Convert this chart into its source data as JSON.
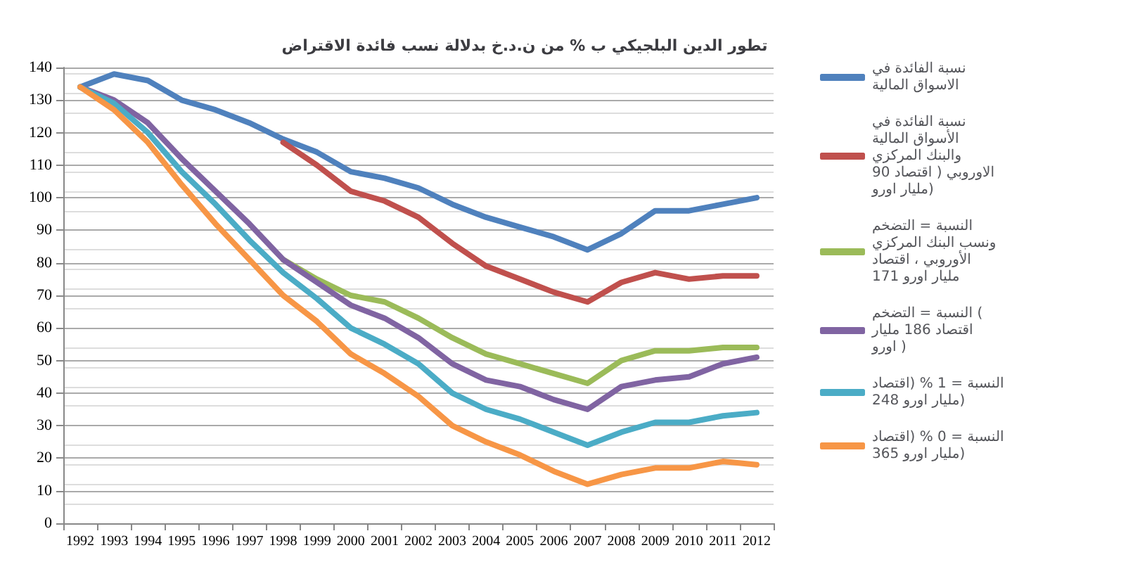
{
  "chart_data": {
    "type": "line",
    "title": "تطور الدين البلجيكي ب % من ن.د.خ بدلالة نسب فائدة الاقتراض",
    "categories": [
      "1992",
      "1993",
      "1994",
      "1995",
      "1996",
      "1997",
      "1998",
      "1999",
      "2000",
      "2001",
      "2002",
      "2003",
      "2004",
      "2005",
      "2006",
      "2007",
      "2008",
      "2009",
      "2010",
      "2011",
      "2012"
    ],
    "series": [
      {
        "name": "نسبة الفائدة في الاسواق المالية",
        "color": "#4f81bd",
        "values": [
          134,
          138,
          136,
          130,
          127,
          123,
          118,
          114,
          108,
          106,
          103,
          98,
          94,
          91,
          88,
          84,
          89,
          96,
          96,
          98,
          100
        ]
      },
      {
        "name": "نسبة الفائدة في الأسواق المالية والبنك المركزي الاوروبي ( اقتصاد 90 مليار اورو)",
        "color": "#c0504d",
        "values": [
          null,
          null,
          null,
          null,
          null,
          null,
          117,
          110,
          102,
          99,
          94,
          86,
          79,
          75,
          71,
          68,
          74,
          77,
          75,
          76,
          76
        ]
      },
      {
        "name": "النسبة = التضخم ونسب البنك المركزي الأوروبي ، اقتصاد 171 مليار اورو",
        "color": "#9bbb59",
        "values": [
          null,
          null,
          null,
          null,
          null,
          null,
          81,
          75,
          70,
          68,
          63,
          57,
          52,
          49,
          46,
          43,
          50,
          53,
          53,
          54,
          54
        ]
      },
      {
        "name": "النسبة = التضخم ( اقتصاد 186 مليار اورو )",
        "color": "#8064a2",
        "values": [
          134,
          130,
          123,
          112,
          102,
          92,
          81,
          74,
          67,
          63,
          57,
          49,
          44,
          42,
          38,
          35,
          42,
          44,
          45,
          49,
          51
        ]
      },
      {
        "name": "النسبة = 1 % (اقتصاد 248 مليار اورو)",
        "color": "#4bacc6",
        "values": [
          134,
          129,
          120,
          108,
          98,
          87,
          77,
          69,
          60,
          55,
          49,
          40,
          35,
          32,
          28,
          24,
          28,
          31,
          31,
          33,
          34
        ]
      },
      {
        "name": "النسبة = 0 % (اقتصاد 365 مليار اورو)",
        "color": "#f79646",
        "values": [
          134,
          127,
          117,
          104,
          92,
          81,
          70,
          62,
          52,
          46,
          39,
          30,
          25,
          21,
          16,
          12,
          15,
          17,
          17,
          19,
          18
        ]
      }
    ],
    "ylim": [
      0,
      140
    ],
    "yticks": [
      0,
      10,
      20,
      30,
      40,
      50,
      60,
      70,
      80,
      90,
      100,
      110,
      120,
      130,
      140
    ],
    "grid": "y",
    "legend": "right",
    "marker": "none",
    "line_style": "solid"
  }
}
